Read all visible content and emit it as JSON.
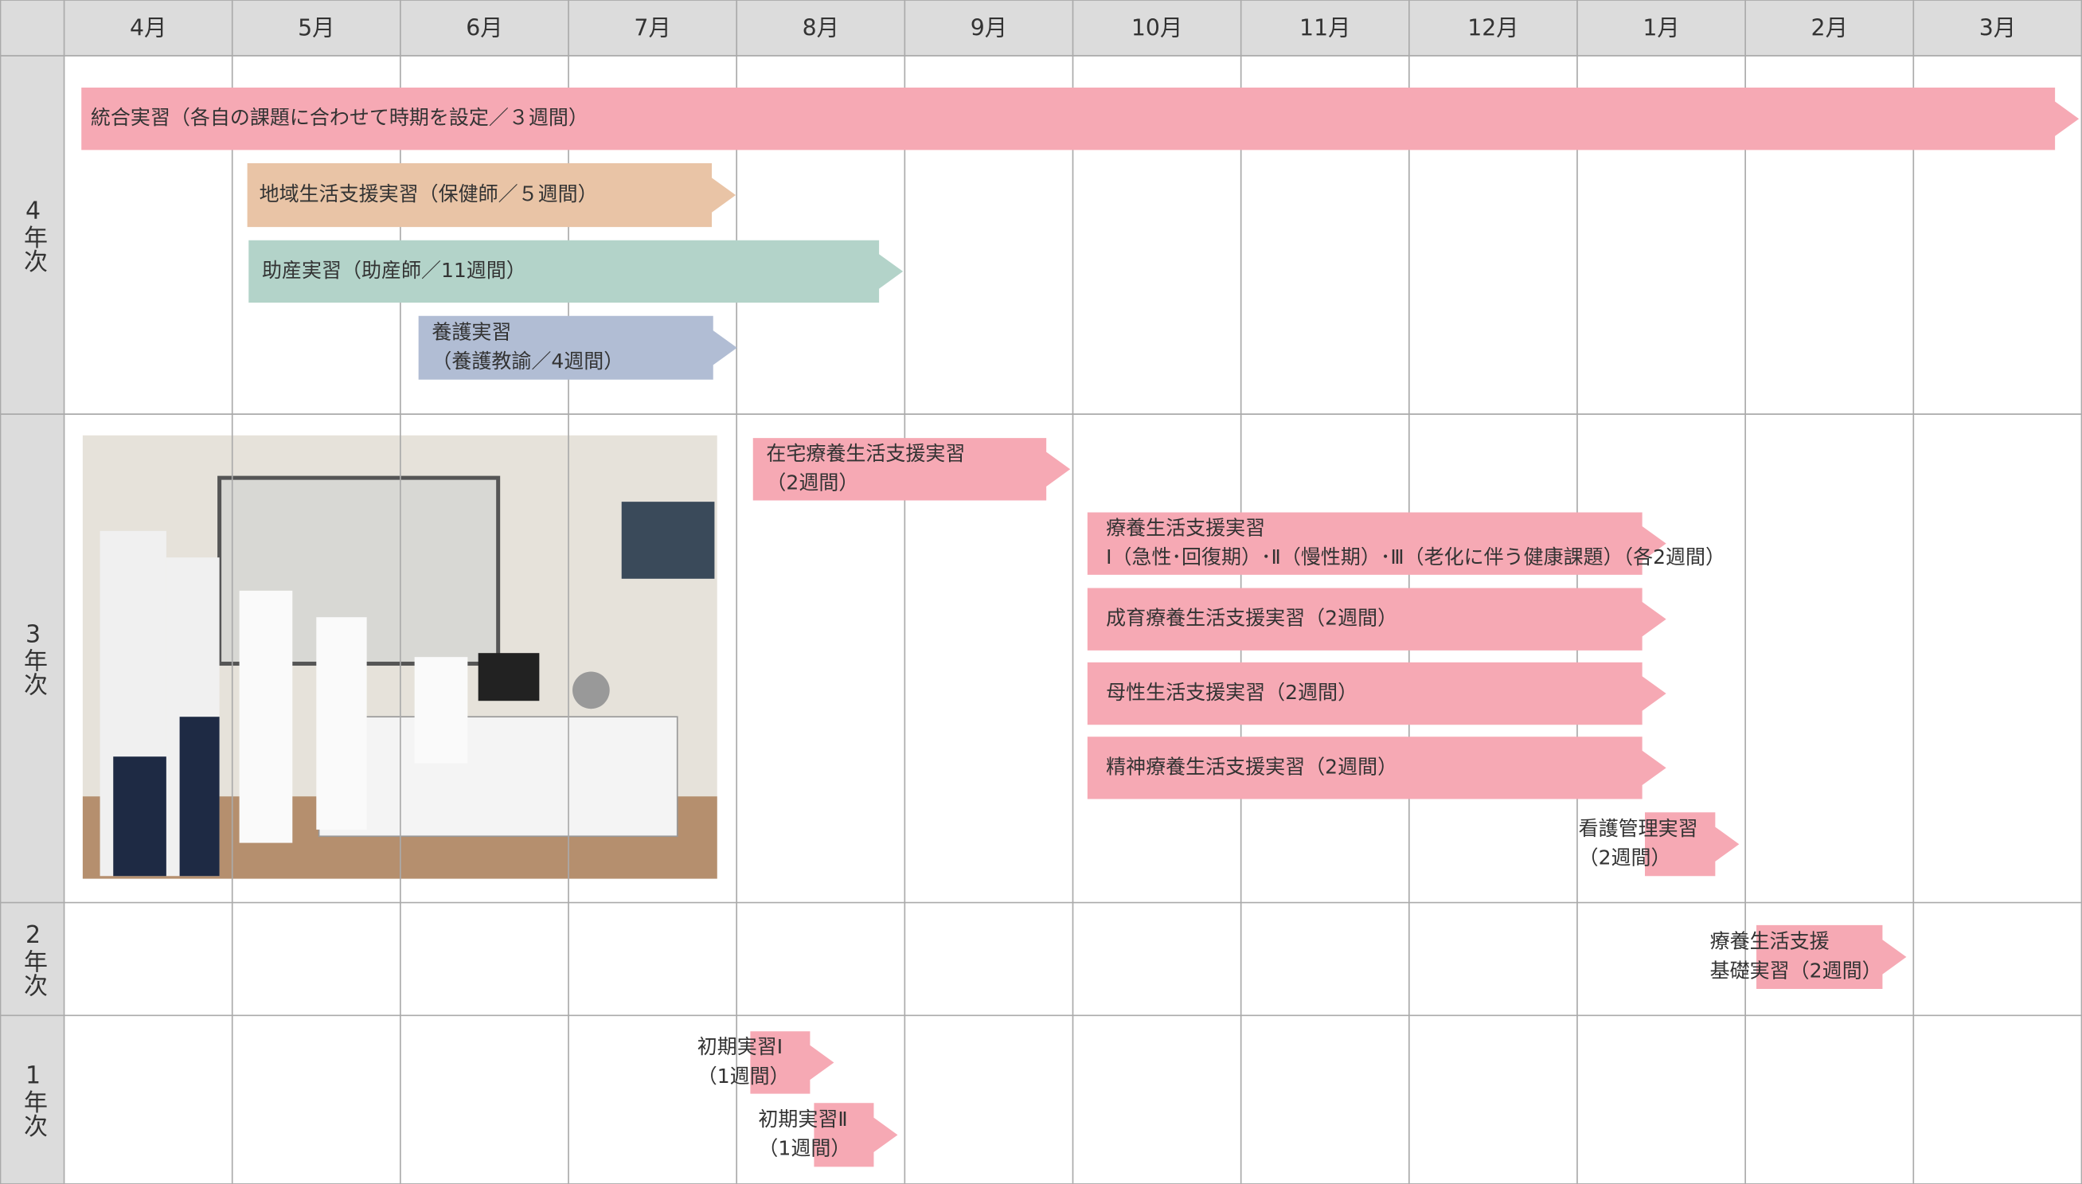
{
  "header": {
    "months": [
      "4月",
      "5月",
      "6月",
      "7月",
      "8月",
      "9月",
      "10月",
      "11月",
      "12月",
      "1月",
      "2月",
      "3月"
    ]
  },
  "rows": [
    {
      "label": "4年次",
      "bars": [
        {
          "lines": [
            "統合実習（各自の課題に合わせて時期を設定／３週間）"
          ]
        },
        {
          "lines": [
            "地域生活支援実習（保健師／５週間）"
          ]
        },
        {
          "lines": [
            "助産実習（助産師／11週間）"
          ]
        },
        {
          "lines": [
            "養護実習",
            "（養護教諭／4週間）"
          ]
        }
      ]
    },
    {
      "label": "3年次",
      "bars": [
        {
          "lines": [
            "在宅療養生活支援実習",
            "（2週間）"
          ]
        },
        {
          "lines": [
            "療養生活支援実習",
            "Ⅰ（急性･回復期）･Ⅱ（慢性期）･Ⅲ（老化に伴う健康課題）（各2週間）"
          ]
        },
        {
          "lines": [
            "成育療養生活支援実習（2週間）"
          ]
        },
        {
          "lines": [
            "母性生活支援実習（2週間）"
          ]
        },
        {
          "lines": [
            "精神療養生活支援実習（2週間）"
          ]
        },
        {
          "lines": [
            "看護管理実習",
            "（2週間）"
          ]
        }
      ]
    },
    {
      "label": "2年次",
      "bars": [
        {
          "lines": [
            "療養生活支援",
            "基礎実習（2週間）"
          ]
        }
      ]
    },
    {
      "label": "1年次",
      "bars": [
        {
          "lines": [
            "初期実習Ⅰ",
            "（1週間）"
          ]
        },
        {
          "lines": [
            "初期実習Ⅱ",
            "（1週間）"
          ]
        }
      ]
    }
  ]
}
